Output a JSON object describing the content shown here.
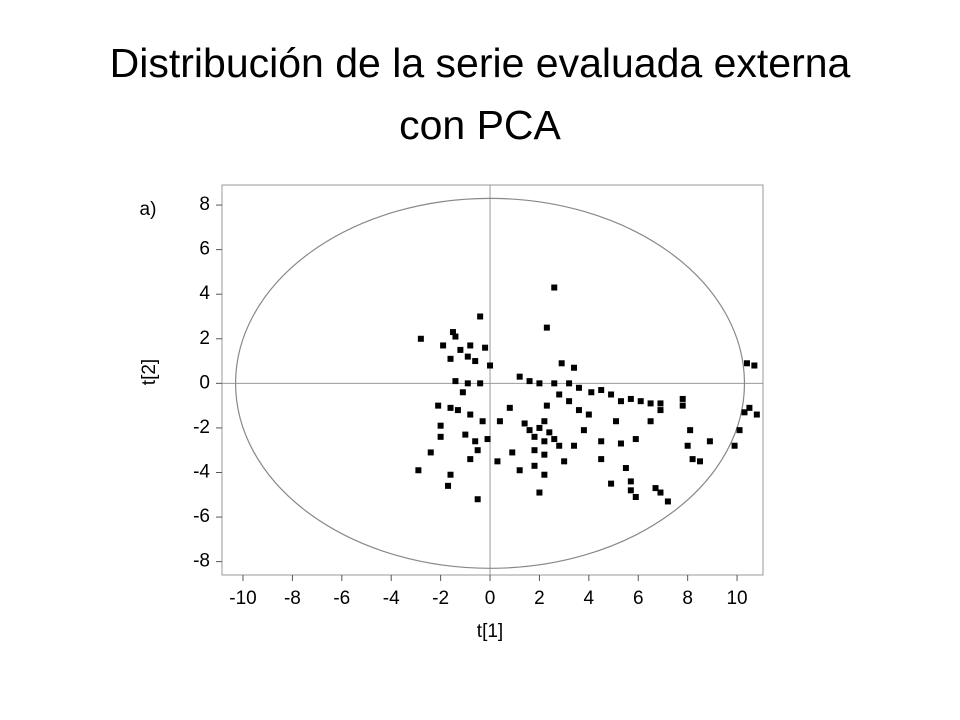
{
  "chart_data": {
    "type": "scatter",
    "title": "Distribución de la serie evaluada externa con PCA",
    "panel_label": "a)",
    "x_label": "t[1]",
    "y_label": "t[2]",
    "xlim": [
      -10.85,
      11.05
    ],
    "ylim": [
      -8.6,
      8.9
    ],
    "xticks": [
      -10,
      -8,
      -6,
      -4,
      -2,
      0,
      2,
      4,
      6,
      8,
      10
    ],
    "yticks": [
      -8,
      -6,
      -4,
      -2,
      0,
      2,
      4,
      6,
      8
    ],
    "color": "#000000",
    "confidence_ellipse": {
      "rx": 10.3,
      "ry": 8.3
    },
    "x": [
      -2.8,
      -1.5,
      -1.4,
      -0.4,
      2.6,
      2.3,
      10.4,
      10.7,
      -1.9,
      -1.2,
      -0.8,
      -0.2,
      -1.6,
      -0.9,
      -0.6,
      0,
      2.9,
      3.4,
      1.2,
      1.6,
      2.0,
      2.6,
      3.2,
      3.6,
      4.1,
      4.5,
      4.9,
      5.3,
      5.7,
      6.1,
      6.5,
      6.9,
      7.8,
      7.8,
      -1.4,
      -0.9,
      -0.4,
      -1.1,
      -2.1,
      -1.6,
      -1.3,
      -0.8,
      -0.3,
      -2.0,
      -1.0,
      -0.6,
      -0.1,
      -2.4,
      -2.9,
      -1.6,
      -1.7,
      -0.8,
      -0.5,
      0.3,
      -0.5,
      0.4,
      0.8,
      1.4,
      1.6,
      1.8,
      2.0,
      2.2,
      2.4,
      2.6,
      2.8,
      1.8,
      2.2,
      1.2,
      1.8,
      2.0,
      2.2,
      3.0,
      3.4,
      3.8,
      4.5,
      5.1,
      5.3,
      5.9,
      6.5,
      6.9,
      3.6,
      3.2,
      4.0,
      8.1,
      8.0,
      8.2,
      8.5,
      8.9,
      9.9,
      10.1,
      10.3,
      10.5,
      10.8,
      4.9,
      5.7,
      5.7,
      5.9,
      6.7,
      6.9,
      7.2,
      0.9,
      2.2,
      4.5,
      5.5,
      2.8,
      2.3,
      -2.0
    ],
    "values": [
      2.0,
      2.3,
      2.1,
      3.0,
      4.3,
      2.5,
      0.9,
      0.8,
      1.7,
      1.5,
      1.7,
      1.6,
      1.1,
      1.2,
      1.0,
      0.8,
      0.9,
      0.7,
      0.3,
      0.1,
      0.0,
      0.0,
      0.0,
      -0.2,
      -0.4,
      -0.3,
      -0.5,
      -0.8,
      -0.7,
      -0.8,
      -0.9,
      -0.9,
      -0.7,
      -1.0,
      0.1,
      0,
      0,
      -0.4,
      -1.0,
      -1.1,
      -1.2,
      -1.4,
      -1.7,
      -2.4,
      -2.3,
      -2.6,
      -2.5,
      -3.1,
      -3.9,
      -4.1,
      -4.6,
      -3.4,
      -3.0,
      -3.5,
      -5.2,
      -1.7,
      -1.1,
      -1.8,
      -2.1,
      -2.4,
      -2.0,
      -2.6,
      -2.2,
      -2.5,
      -2.8,
      -3.0,
      -3.2,
      -3.9,
      -3.7,
      -4.9,
      -4.1,
      -3.5,
      -2.8,
      -2.1,
      -2.6,
      -1.7,
      -2.7,
      -2.5,
      -1.7,
      -1.2,
      -1.2,
      -0.8,
      -1.4,
      -2.1,
      -2.8,
      -3.4,
      -3.5,
      -2.6,
      -2.8,
      -2.1,
      -1.3,
      -1.1,
      -1.4,
      -4.5,
      -4.4,
      -4.8,
      -5.1,
      -4.7,
      -4.9,
      -5.3,
      -3.1,
      -1.7,
      -3.4,
      -3.8,
      -0.5,
      -1.0,
      -1.9
    ]
  }
}
